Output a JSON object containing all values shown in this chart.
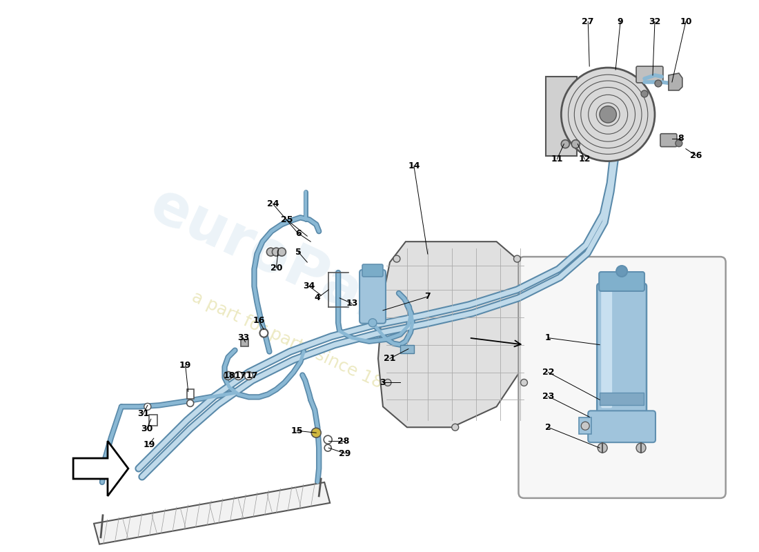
{
  "bg": "#ffffff",
  "pipe_blue": "#8ab8d4",
  "pipe_dark": "#5a8aaa",
  "pipe_light": "#c0daea",
  "part_gray": "#d8d8d8",
  "part_edge": "#555555",
  "part_dark_edge": "#333333",
  "inset_bg": "#f5f5f5",
  "inset_edge": "#aaaaaa",
  "cyl_blue": "#a0c4dc",
  "cyl_dark": "#6090b0",
  "gbox_fill": "#e0e0e0",
  "wm_color": "#d5e5f0",
  "wm_yellow": "#ddd890",
  "figw": 11.0,
  "figh": 8.0,
  "dpi": 100
}
